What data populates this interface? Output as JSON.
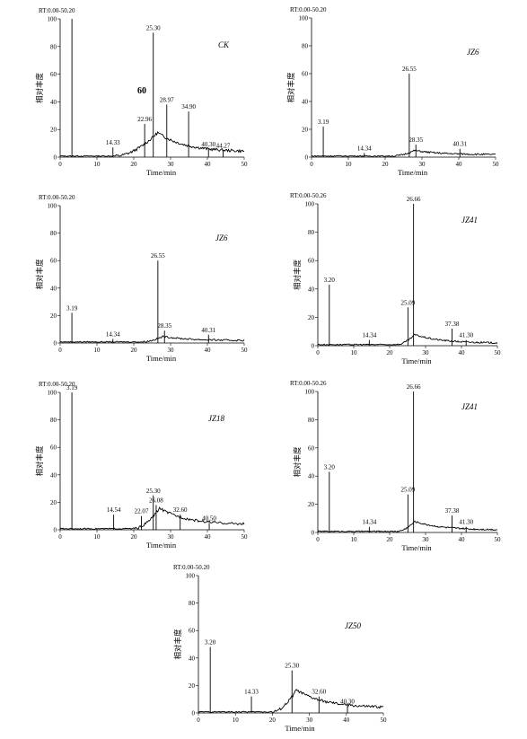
{
  "chart_data": [
    {
      "type": "line",
      "rt_range": "RT:0.00-50.20",
      "sample_label": "CK",
      "extra_label": "60",
      "xlabel": "Time/min",
      "ylabel": "相对丰度",
      "xlim": [
        0,
        50
      ],
      "ylim": [
        0,
        100
      ],
      "xticks": [
        0,
        10,
        20,
        30,
        40,
        50
      ],
      "yticks": [
        0,
        20,
        40,
        60,
        80,
        100
      ],
      "hump": {
        "start": 15,
        "peak_x": 26.5,
        "peak_y": 17,
        "end_y": 3
      },
      "peaks": [
        {
          "x": 3.2,
          "y": 100,
          "label": ""
        },
        {
          "x": 14.33,
          "y": 7,
          "label": "14.33"
        },
        {
          "x": 22.96,
          "y": 24,
          "label": "22.96"
        },
        {
          "x": 25.3,
          "y": 90,
          "label": "25.30"
        },
        {
          "x": 28.97,
          "y": 38,
          "label": "28.97"
        },
        {
          "x": 34.9,
          "y": 33,
          "label": "34.90"
        },
        {
          "x": 40.3,
          "y": 6,
          "label": "40.30"
        },
        {
          "x": 44.27,
          "y": 5,
          "label": "44.27"
        }
      ]
    },
    {
      "type": "line",
      "rt_range": "RT:0.00-50.20",
      "sample_label": "JZ6",
      "extra_label": "",
      "xlabel": "Time/min",
      "ylabel": "相对丰度",
      "xlim": [
        0,
        50
      ],
      "ylim": [
        0,
        100
      ],
      "xticks": [
        0,
        10,
        20,
        30,
        40,
        50
      ],
      "yticks": [
        0,
        20,
        40,
        60,
        80,
        100
      ],
      "hump": {
        "start": 22,
        "peak_x": 28,
        "peak_y": 4,
        "end_y": 1
      },
      "peaks": [
        {
          "x": 3.19,
          "y": 22,
          "label": "3.19"
        },
        {
          "x": 14.34,
          "y": 3,
          "label": "14.34"
        },
        {
          "x": 26.55,
          "y": 60,
          "label": "26.55"
        },
        {
          "x": 28.35,
          "y": 9,
          "label": "28.35"
        },
        {
          "x": 40.31,
          "y": 6,
          "label": "40.31"
        }
      ]
    },
    {
      "type": "line",
      "rt_range": "RT:0.00-50.20",
      "sample_label": "JZ6",
      "extra_label": "",
      "xlabel": "Time/min",
      "ylabel": "相对丰度",
      "xlim": [
        0,
        50
      ],
      "ylim": [
        0,
        100
      ],
      "xticks": [
        0,
        10,
        20,
        30,
        40,
        50
      ],
      "yticks": [
        0,
        20,
        40,
        60,
        80,
        100
      ],
      "hump": {
        "start": 22,
        "peak_x": 28,
        "peak_y": 4,
        "end_y": 1
      },
      "peaks": [
        {
          "x": 3.19,
          "y": 22,
          "label": "3.19"
        },
        {
          "x": 14.34,
          "y": 3,
          "label": "14.34"
        },
        {
          "x": 26.55,
          "y": 60,
          "label": "26.55"
        },
        {
          "x": 28.35,
          "y": 9,
          "label": "28.35"
        },
        {
          "x": 40.31,
          "y": 6,
          "label": "40.31"
        }
      ]
    },
    {
      "type": "line",
      "rt_range": "RT:0.00-50.26",
      "sample_label": "JZ41",
      "extra_label": "",
      "xlabel": "Time/min",
      "ylabel": "相对丰度",
      "xlim": [
        0,
        50
      ],
      "ylim": [
        0,
        100
      ],
      "xticks": [
        0,
        10,
        20,
        30,
        40,
        50
      ],
      "yticks": [
        0,
        20,
        40,
        60,
        80,
        100
      ],
      "hump": {
        "start": 22,
        "peak_x": 27,
        "peak_y": 7,
        "end_y": 1
      },
      "peaks": [
        {
          "x": 3.2,
          "y": 43,
          "label": "3.20"
        },
        {
          "x": 14.34,
          "y": 4,
          "label": "14.34"
        },
        {
          "x": 25.09,
          "y": 27,
          "label": "25.09"
        },
        {
          "x": 26.66,
          "y": 100,
          "label": "26.66"
        },
        {
          "x": 37.38,
          "y": 12,
          "label": "37.38"
        },
        {
          "x": 41.3,
          "y": 4,
          "label": "41.30"
        }
      ]
    },
    {
      "type": "line",
      "rt_range": "RT:0.00-50.20",
      "sample_label": "JZ18",
      "extra_label": "",
      "xlabel": "Time/min",
      "ylabel": "相对丰度",
      "xlim": [
        0,
        50
      ],
      "ylim": [
        0,
        100
      ],
      "xticks": [
        0,
        10,
        20,
        30,
        40,
        50
      ],
      "yticks": [
        0,
        20,
        40,
        60,
        80,
        100
      ],
      "hump": {
        "start": 20,
        "peak_x": 27,
        "peak_y": 15,
        "end_y": 3
      },
      "peaks": [
        {
          "x": 3.19,
          "y": 100,
          "label": "3.19"
        },
        {
          "x": 14.54,
          "y": 11,
          "label": "14.54"
        },
        {
          "x": 22.07,
          "y": 10,
          "label": "22.07"
        },
        {
          "x": 25.3,
          "y": 25,
          "label": "25.30"
        },
        {
          "x": 26.08,
          "y": 18,
          "label": "26.08"
        },
        {
          "x": 32.6,
          "y": 11,
          "label": "32.60"
        },
        {
          "x": 40.5,
          "y": 5,
          "label": "40.50"
        }
      ]
    },
    {
      "type": "line",
      "rt_range": "RT:0.00-50.26",
      "sample_label": "JZ41",
      "extra_label": "",
      "xlabel": "Time/min",
      "ylabel": "相对丰度",
      "xlim": [
        0,
        50
      ],
      "ylim": [
        0,
        100
      ],
      "xticks": [
        0,
        10,
        20,
        30,
        40,
        50
      ],
      "yticks": [
        0,
        20,
        40,
        60,
        80,
        100
      ],
      "hump": {
        "start": 22,
        "peak_x": 27,
        "peak_y": 7,
        "end_y": 1
      },
      "peaks": [
        {
          "x": 3.2,
          "y": 43,
          "label": "3.20"
        },
        {
          "x": 14.34,
          "y": 4,
          "label": "14.34"
        },
        {
          "x": 25.09,
          "y": 27,
          "label": "25.09"
        },
        {
          "x": 26.66,
          "y": 100,
          "label": "26.66"
        },
        {
          "x": 37.38,
          "y": 12,
          "label": "37.38"
        },
        {
          "x": 41.3,
          "y": 4,
          "label": "41.30"
        }
      ]
    },
    {
      "type": "line",
      "rt_range": "RT:0.00-50.20",
      "sample_label": "JZ50",
      "extra_label": "",
      "xlabel": "Time/min",
      "ylabel": "相对丰度",
      "xlim": [
        0,
        50
      ],
      "ylim": [
        0,
        100
      ],
      "xticks": [
        0,
        10,
        20,
        30,
        40,
        50
      ],
      "yticks": [
        0,
        20,
        40,
        60,
        80,
        100
      ],
      "hump": {
        "start": 20,
        "peak_x": 26.5,
        "peak_y": 16,
        "end_y": 3
      },
      "peaks": [
        {
          "x": 3.2,
          "y": 48,
          "label": "3.20"
        },
        {
          "x": 14.33,
          "y": 12,
          "label": "14.33"
        },
        {
          "x": 25.3,
          "y": 31,
          "label": "25.30"
        },
        {
          "x": 32.6,
          "y": 12,
          "label": "32.60"
        },
        {
          "x": 40.3,
          "y": 5,
          "label": "40.30"
        }
      ]
    }
  ]
}
